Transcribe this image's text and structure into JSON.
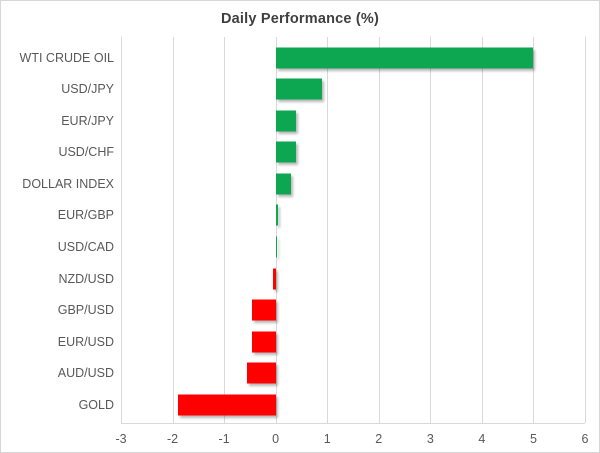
{
  "chart": {
    "title": "Daily Performance (%)"
  },
  "chart_data": {
    "type": "bar",
    "orientation": "horizontal",
    "title": "Daily Performance (%)",
    "categories": [
      "WTI CRUDE OIL",
      "USD/JPY",
      "EUR/JPY",
      "USD/CHF",
      "DOLLAR INDEX",
      "EUR/GBP",
      "USD/CAD",
      "NZD/USD",
      "GBP/USD",
      "EUR/USD",
      "AUD/USD",
      "GOLD"
    ],
    "values": [
      5.0,
      0.9,
      0.4,
      0.4,
      0.3,
      0.05,
      0.02,
      -0.05,
      -0.45,
      -0.45,
      -0.55,
      -1.9
    ],
    "xlabel": "",
    "ylabel": "",
    "xlim": [
      -3,
      6
    ],
    "xticks": [
      -3,
      -2,
      -1,
      0,
      1,
      2,
      3,
      4,
      5,
      6
    ],
    "grid": "vertical",
    "legend": "none",
    "colors": {
      "positive": "#0ca750",
      "negative": "#fe0000",
      "gridline": "#d9d9d9",
      "axis_text": "#595959",
      "title_text": "#3f3f3f"
    }
  }
}
